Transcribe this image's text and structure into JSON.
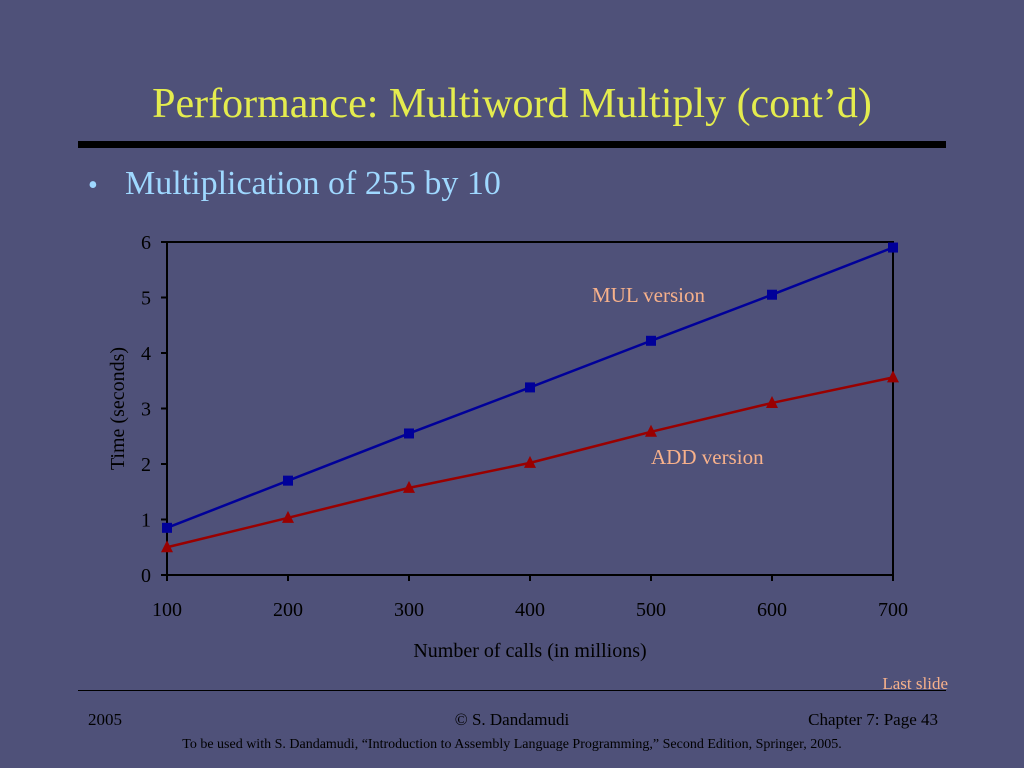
{
  "slide": {
    "title": "Performance: Multiword Multiply (cont’d)",
    "bullet_symbol": "•",
    "bullet": "Multiplication of 255 by 10",
    "last_slide_link": "Last slide",
    "footer_left": "2005",
    "footer_center": "© S. Dandamudi",
    "footer_right": "Chapter 7: Page 43",
    "footnote": "To be used with S. Dandamudi, “Introduction to Assembly Language Programming,” Second Edition, Springer, 2005."
  },
  "colors": {
    "background": "#4f5179",
    "title": "#e4ec4e",
    "bullet": "#9fd8ff",
    "annotation": "#f7b18b",
    "mul_series": "#000099",
    "add_series": "#990000"
  },
  "chart_data": {
    "type": "line",
    "xlabel": "Number of calls (in millions)",
    "ylabel": "Time (seconds)",
    "x": [
      100,
      200,
      300,
      400,
      500,
      600,
      700
    ],
    "xlim": [
      100,
      700
    ],
    "ylim": [
      0,
      6
    ],
    "x_ticks": [
      100,
      200,
      300,
      400,
      500,
      600,
      700
    ],
    "y_ticks": [
      0,
      1,
      2,
      3,
      4,
      5,
      6
    ],
    "grid": false,
    "legend": "none",
    "series": [
      {
        "name": "MUL version",
        "marker": "square",
        "color": "#000099",
        "values": [
          0.85,
          1.7,
          2.55,
          3.38,
          4.22,
          5.05,
          5.9
        ]
      },
      {
        "name": "ADD version",
        "marker": "triangle",
        "color": "#990000",
        "values": [
          0.5,
          1.03,
          1.57,
          2.02,
          2.58,
          3.1,
          3.56
        ]
      }
    ],
    "annotations": [
      {
        "text": "MUL version",
        "series": "MUL version"
      },
      {
        "text": "ADD version",
        "series": "ADD version"
      }
    ]
  }
}
